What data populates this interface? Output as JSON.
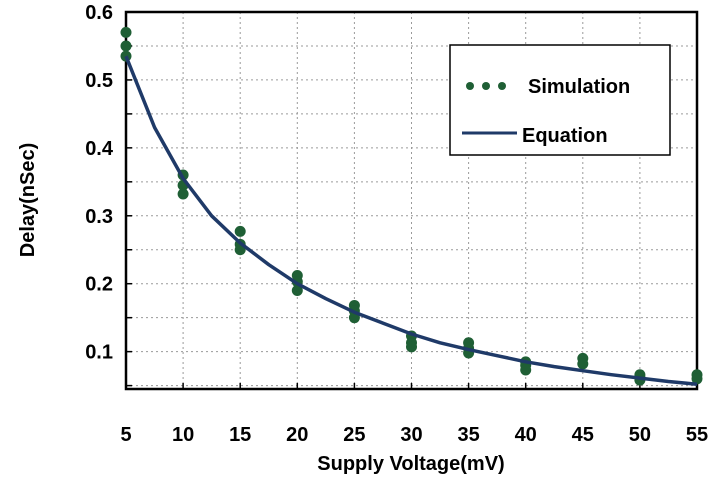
{
  "chart_data": {
    "type": "scatter",
    "title": "",
    "xlabel": "Supply Voltage(mV)",
    "ylabel": "Delay(nSec)",
    "xlim": [
      5,
      55
    ],
    "ylim": [
      0.045,
      0.6
    ],
    "x_ticks": [
      "5",
      "10",
      "15",
      "20",
      "25",
      "30",
      "35",
      "40",
      "45",
      "50",
      "55"
    ],
    "y_ticks": [
      "0.1",
      "0.2",
      "0.3",
      "0.4",
      "0.5",
      "0.6"
    ],
    "grid": true,
    "legend_position": "top-right",
    "series": [
      {
        "name": "Simulation",
        "kind": "points",
        "color": "#1f5f35",
        "points": [
          [
            5,
            0.57
          ],
          [
            5,
            0.55
          ],
          [
            5,
            0.535
          ],
          [
            10,
            0.36
          ],
          [
            10,
            0.345
          ],
          [
            10,
            0.332
          ],
          [
            15,
            0.277
          ],
          [
            15,
            0.258
          ],
          [
            15,
            0.25
          ],
          [
            20,
            0.212
          ],
          [
            20,
            0.203
          ],
          [
            20,
            0.19
          ],
          [
            25,
            0.168
          ],
          [
            25,
            0.16
          ],
          [
            25,
            0.15
          ],
          [
            30,
            0.123
          ],
          [
            30,
            0.113
          ],
          [
            30,
            0.107
          ],
          [
            35,
            0.113
          ],
          [
            35,
            0.105
          ],
          [
            35,
            0.098
          ],
          [
            40,
            0.085
          ],
          [
            40,
            0.08
          ],
          [
            40,
            0.073
          ],
          [
            45,
            0.09
          ],
          [
            45,
            0.082
          ],
          [
            50,
            0.066
          ],
          [
            50,
            0.062
          ],
          [
            50,
            0.058
          ],
          [
            55,
            0.066
          ],
          [
            55,
            0.06
          ]
        ]
      },
      {
        "name": "Equation",
        "kind": "line",
        "color": "#1f3a68",
        "x": [
          5,
          7.5,
          10,
          12.5,
          15,
          17.5,
          20,
          22.5,
          25,
          27.5,
          30,
          32.5,
          35,
          37.5,
          40,
          42.5,
          45,
          47.5,
          50,
          52.5,
          55
        ],
        "y": [
          0.535,
          0.43,
          0.355,
          0.3,
          0.26,
          0.228,
          0.2,
          0.178,
          0.158,
          0.142,
          0.126,
          0.113,
          0.103,
          0.094,
          0.085,
          0.078,
          0.072,
          0.066,
          0.061,
          0.056,
          0.052
        ]
      }
    ]
  }
}
